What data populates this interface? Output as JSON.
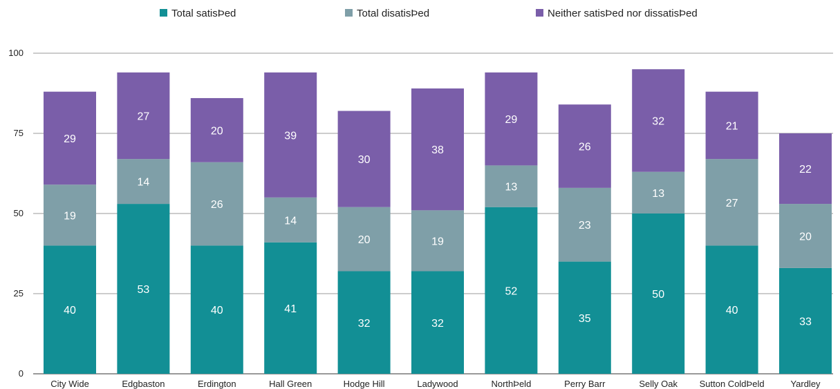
{
  "chart_data": {
    "type": "bar",
    "stacked": true,
    "categories": [
      "City Wide",
      "Edgbaston",
      "Erdington",
      "Hall Green",
      "Hodge Hill",
      "Ladywood",
      "NorthÞeld",
      "Perry Barr",
      "Selly Oak",
      "Sutton ColdÞeld",
      "Yardley"
    ],
    "series": [
      {
        "name": "Total satisÞed",
        "color": "#128f95",
        "values": [
          40,
          53,
          40,
          41,
          32,
          32,
          52,
          35,
          50,
          40,
          33
        ]
      },
      {
        "name": "Total disatisÞed",
        "color": "#7f9fa8",
        "values": [
          19,
          14,
          26,
          14,
          20,
          19,
          13,
          23,
          13,
          27,
          20
        ]
      },
      {
        "name": "Neither satisÞed nor dissatisÞed",
        "color": "#7a5ea9",
        "values": [
          29,
          27,
          20,
          39,
          30,
          38,
          29,
          26,
          32,
          21,
          22
        ]
      }
    ],
    "ylim": [
      0,
      100
    ],
    "yticks": [
      0,
      25,
      50,
      75,
      100
    ],
    "grid": true,
    "legend_position": "top",
    "title": "",
    "xlabel": "",
    "ylabel": ""
  }
}
